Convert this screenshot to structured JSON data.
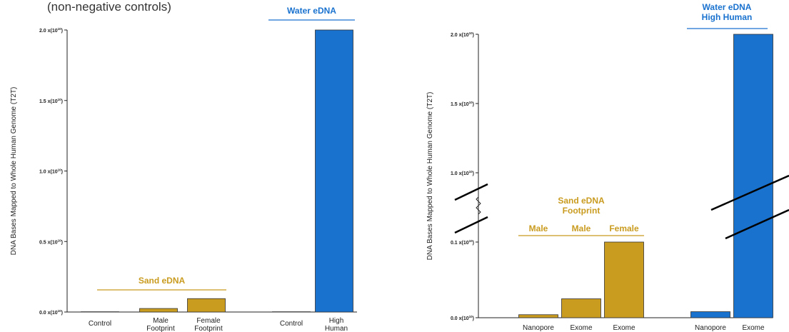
{
  "colors": {
    "sand": "#C99B1F",
    "water": "#1A72CF",
    "axis": "#222222",
    "title": "#333333"
  },
  "title_fragment": "(non-negative controls)",
  "chart_data": [
    {
      "type": "bar",
      "ylabel": "DNA Bases Mapped to Whole Human Genome (T2T)",
      "ylim": [
        0,
        20000000000
      ],
      "yticks": [
        {
          "mant": "0.0 x(10",
          "exp": "10",
          "close": ")"
        },
        {
          "mant": "0.5 x(10",
          "exp": "10",
          "close": ")"
        },
        {
          "mant": "1.0 x(10",
          "exp": "10",
          "close": ")"
        },
        {
          "mant": "1.5 x(10",
          "exp": "10",
          "close": ")"
        },
        {
          "mant": "2.0 x(10",
          "exp": "10",
          "close": ")"
        }
      ],
      "bars": [
        {
          "label": [
            "Control"
          ],
          "value": 20000000,
          "group": "sand"
        },
        {
          "label": [
            "Male",
            "Footprint"
          ],
          "value": 250000000,
          "group": "sand"
        },
        {
          "label": [
            "Female",
            "Footprint"
          ],
          "value": 950000000,
          "group": "sand"
        },
        {
          "label": [
            "Control"
          ],
          "value": 20000000,
          "group": "water"
        },
        {
          "label": [
            "High",
            "Human"
          ],
          "value": 20000000000,
          "group": "water"
        }
      ],
      "group_labels": [
        {
          "text": [
            "Sand eDNA"
          ],
          "color": "sand"
        },
        {
          "text": [
            "Water eDNA"
          ],
          "color": "water"
        }
      ]
    },
    {
      "type": "bar",
      "ylabel": "DNA Bases Mapped to Whole Human Genome (T2T)",
      "axis_break": true,
      "yticks": [
        {
          "mant": "0.0 x(10",
          "exp": "10",
          "close": ")"
        },
        {
          "mant": "0.1 x(10",
          "exp": "10",
          "close": ")"
        },
        {
          "mant": "1.0 x(10",
          "exp": "10",
          "close": ")"
        },
        {
          "mant": "1.5 x(10",
          "exp": "10",
          "close": ")"
        },
        {
          "mant": "2.0 x(10",
          "exp": "10",
          "close": ")"
        }
      ],
      "bars": [
        {
          "label": [
            "Nanopore"
          ],
          "value": 40000000,
          "group": "sand"
        },
        {
          "label": [
            "Exome"
          ],
          "value": 250000000,
          "group": "sand"
        },
        {
          "label": [
            "Exome"
          ],
          "value": 1000000000,
          "group": "sand"
        },
        {
          "label": [
            "Nanopore"
          ],
          "value": 80000000,
          "group": "water"
        },
        {
          "label": [
            "Exome"
          ],
          "value": 20000000000,
          "group": "water"
        }
      ],
      "subgroup_labels": [
        "Male",
        "Male",
        "Female"
      ],
      "group_labels": [
        {
          "text": [
            "Sand eDNA",
            "Footprint"
          ],
          "color": "sand"
        },
        {
          "text": [
            "Water eDNA",
            "High Human"
          ],
          "color": "water"
        }
      ]
    }
  ]
}
